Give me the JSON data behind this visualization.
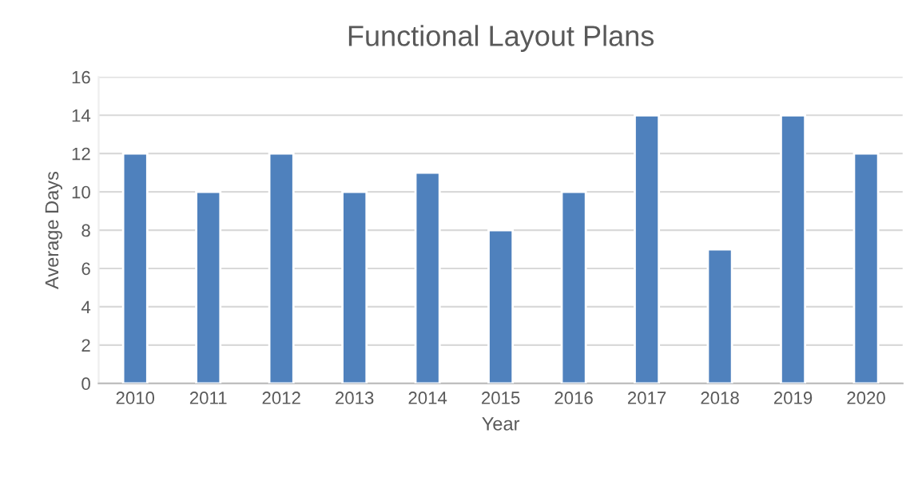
{
  "chart_data": {
    "type": "bar",
    "title": "Functional Layout Plans",
    "xlabel": "Year",
    "ylabel": "Average Days",
    "categories": [
      "2010",
      "2011",
      "2012",
      "2013",
      "2014",
      "2015",
      "2016",
      "2017",
      "2018",
      "2019",
      "2020"
    ],
    "values": [
      12,
      10,
      12,
      10,
      11,
      8,
      10,
      14,
      7,
      14,
      12
    ],
    "color": "#4f81bd",
    "ylim": [
      0,
      16
    ],
    "yticks": [
      0,
      2,
      4,
      6,
      8,
      10,
      12,
      14,
      16
    ],
    "grid": "y",
    "legend": false
  }
}
